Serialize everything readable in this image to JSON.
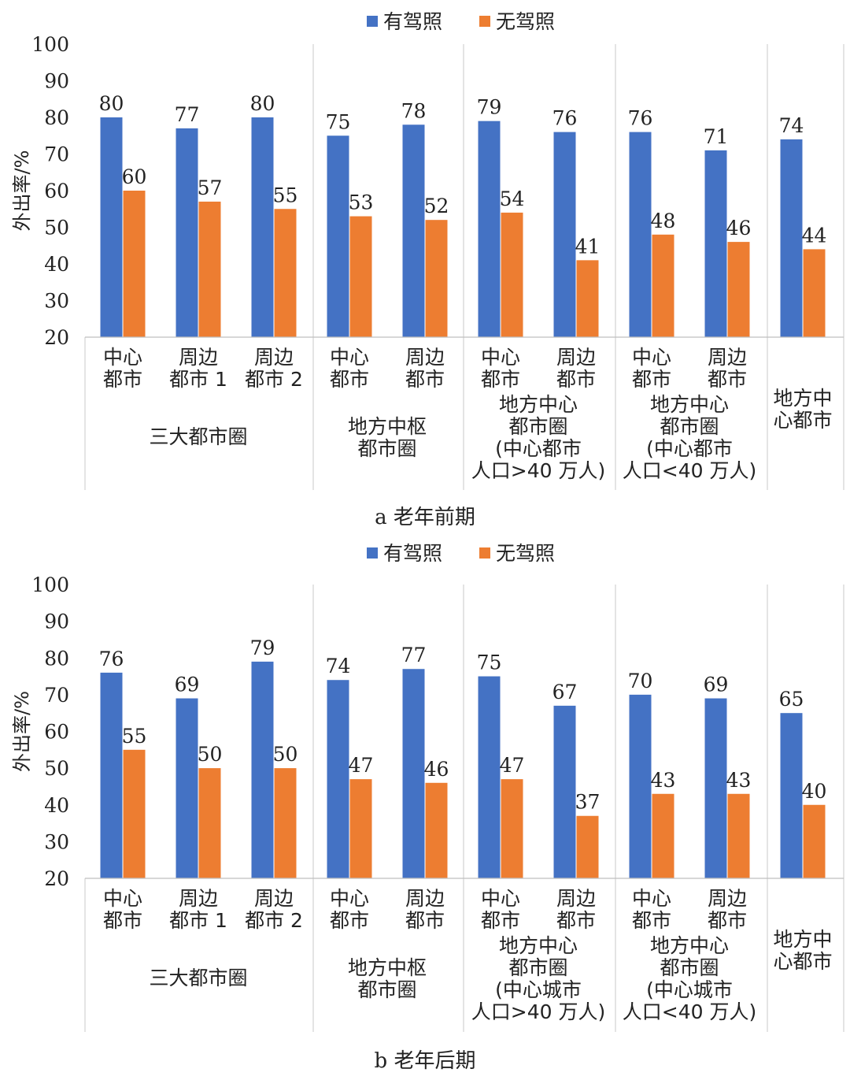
{
  "legend": [
    {
      "label": "有驾照",
      "color": "#4472C4"
    },
    {
      "label": "无驾照",
      "color": "#ED7D31"
    }
  ],
  "ylabel": "外出率/%",
  "chart_data": [
    {
      "type": "bar",
      "caption": "a 老年前期",
      "ylim": [
        20,
        100
      ],
      "yticks": [
        20,
        30,
        40,
        50,
        60,
        70,
        80,
        90,
        100
      ],
      "categories": [
        {
          "label": [
            "中心",
            "都市"
          ]
        },
        {
          "label": [
            "周边",
            "都市 1"
          ]
        },
        {
          "label": [
            "周边",
            "都市 2"
          ]
        },
        {
          "label": [
            "中心",
            "都市"
          ]
        },
        {
          "label": [
            "周边",
            "都市"
          ]
        },
        {
          "label": [
            "中心",
            "都市"
          ]
        },
        {
          "label": [
            "周边",
            "都市"
          ]
        },
        {
          "label": [
            "中心",
            "都市"
          ]
        },
        {
          "label": [
            "周边",
            "都市"
          ]
        },
        {
          "label": []
        }
      ],
      "groups": [
        {
          "label": [
            "三大都市圈"
          ],
          "span": [
            0,
            2
          ]
        },
        {
          "label": [
            "地方中枢",
            "都市圈"
          ],
          "span": [
            3,
            4
          ]
        },
        {
          "label": [
            "地方中心",
            "都市圈",
            "(中心都市",
            "人口>40 万人)"
          ],
          "span": [
            5,
            6
          ]
        },
        {
          "label": [
            "地方中心",
            "都市圈",
            "(中心都市",
            "人口<40 万人)"
          ],
          "span": [
            7,
            8
          ]
        },
        {
          "label": [
            "地方中",
            "心都市"
          ],
          "span": [
            9,
            9
          ]
        }
      ],
      "series": [
        {
          "name": "有驾照",
          "values": [
            80,
            77,
            80,
            75,
            78,
            79,
            76,
            76,
            71,
            74
          ]
        },
        {
          "name": "无驾照",
          "values": [
            60,
            57,
            55,
            53,
            52,
            54,
            41,
            48,
            46,
            44
          ]
        }
      ]
    },
    {
      "type": "bar",
      "caption": "b 老年后期",
      "ylim": [
        20,
        100
      ],
      "yticks": [
        20,
        30,
        40,
        50,
        60,
        70,
        80,
        90,
        100
      ],
      "categories": [
        {
          "label": [
            "中心",
            "都市"
          ]
        },
        {
          "label": [
            "周边",
            "都市 1"
          ]
        },
        {
          "label": [
            "周边",
            "都市 2"
          ]
        },
        {
          "label": [
            "中心",
            "都市"
          ]
        },
        {
          "label": [
            "周边",
            "都市"
          ]
        },
        {
          "label": [
            "中心",
            "都市"
          ]
        },
        {
          "label": [
            "周边",
            "都市"
          ]
        },
        {
          "label": [
            "中心",
            "都市"
          ]
        },
        {
          "label": [
            "周边",
            "都市"
          ]
        },
        {
          "label": []
        }
      ],
      "groups": [
        {
          "label": [
            "三大都市圈"
          ],
          "span": [
            0,
            2
          ]
        },
        {
          "label": [
            "地方中枢",
            "都市圈"
          ],
          "span": [
            3,
            4
          ]
        },
        {
          "label": [
            "地方中心",
            "都市圈",
            "(中心城市",
            "人口>40 万人)"
          ],
          "span": [
            5,
            6
          ]
        },
        {
          "label": [
            "地方中心",
            "都市圈",
            "(中心城市",
            "人口<40 万人)"
          ],
          "span": [
            7,
            8
          ]
        },
        {
          "label": [
            "地方中",
            "心都市"
          ],
          "span": [
            9,
            9
          ]
        }
      ],
      "series": [
        {
          "name": "有驾照",
          "values": [
            76,
            69,
            79,
            74,
            77,
            75,
            67,
            70,
            69,
            65
          ]
        },
        {
          "name": "无驾照",
          "values": [
            55,
            50,
            50,
            47,
            46,
            47,
            37,
            43,
            43,
            40
          ]
        }
      ]
    }
  ]
}
